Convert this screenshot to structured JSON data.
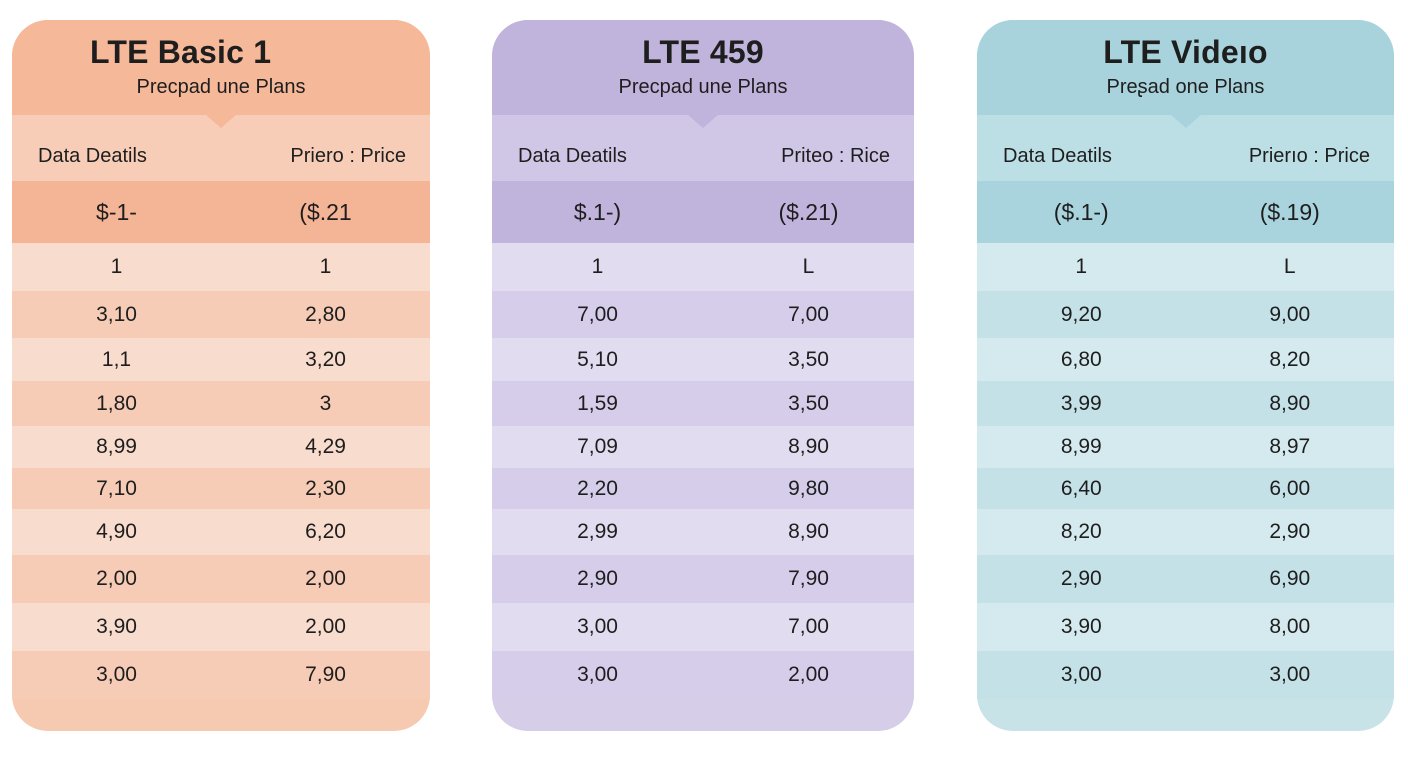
{
  "plans": [
    {
      "title": "LTE Basic 1",
      "subtitle": "Precpad une Plans",
      "col_left": "Data Deatils",
      "col_right": "Priero : Price",
      "colors": {
        "head": "#f5b898",
        "colhead": "#f7cdb7",
        "highlight": "#f4b596",
        "light": "#f8dcce",
        "medium": "#f6ccb7",
        "footer": "#f6c9b1"
      },
      "highlight": [
        "$-1-",
        "($.21"
      ],
      "rows": [
        [
          "1",
          "1"
        ],
        [
          "3,10",
          "2,80"
        ],
        [
          "1,1",
          "3,20"
        ],
        [
          "1,80",
          "3"
        ],
        [
          "8,99",
          "4,29"
        ],
        [
          "7,10",
          "2,30"
        ],
        [
          "4,90",
          "6,20"
        ],
        [
          "2,00",
          "2,00"
        ],
        [
          "3,90",
          "2,00"
        ],
        [
          "3,00",
          "7,90"
        ]
      ]
    },
    {
      "title": "LTE 459",
      "subtitle": "Precpad une Plans",
      "col_left": "Data Deatils",
      "col_right": "Priteo : Rice",
      "colors": {
        "head": "#c0b3dc",
        "colhead": "#d0c7e6",
        "highlight": "#c1b4dc",
        "light": "#e1dcef",
        "medium": "#d5cde9",
        "footer": "#d6cde8"
      },
      "highlight": [
        "$.1-)",
        "($.21)"
      ],
      "rows": [
        [
          "1",
          "L"
        ],
        [
          "7,00",
          "7,00"
        ],
        [
          "5,10",
          "3,50"
        ],
        [
          "1,59",
          "3,50"
        ],
        [
          "7,09",
          "8,90"
        ],
        [
          "2,20",
          "9,80"
        ],
        [
          "2,99",
          "8,90"
        ],
        [
          "2,90",
          "7,90"
        ],
        [
          "3,00",
          "7,00"
        ],
        [
          "3,00",
          "2,00"
        ]
      ]
    },
    {
      "title": "LTE Videıo",
      "subtitle": "Preʂad one Plans",
      "col_left": "Data Deatils",
      "col_right": "Prierıo : Price",
      "colors": {
        "head": "#a8d3dc",
        "colhead": "#bcdee5",
        "highlight": "#a9d4dd",
        "light": "#d5eaee",
        "medium": "#c3e1e7",
        "footer": "#c7e3e8"
      },
      "highlight": [
        "($.1-)",
        "($.19)"
      ],
      "rows": [
        [
          "1",
          "L"
        ],
        [
          "9,20",
          "9,00"
        ],
        [
          "6,80",
          "8,20"
        ],
        [
          "3,99",
          "8,90"
        ],
        [
          "8,99",
          "8,97"
        ],
        [
          "6,40",
          "6,00"
        ],
        [
          "8,20",
          "2,90"
        ],
        [
          "2,90",
          "6,90"
        ],
        [
          "3,90",
          "8,00"
        ],
        [
          "3,00",
          "3,00"
        ]
      ]
    }
  ]
}
